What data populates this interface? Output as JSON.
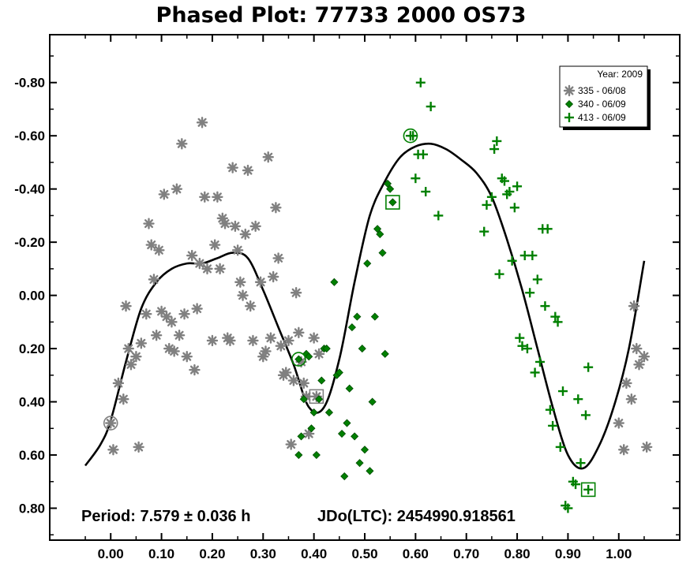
{
  "chart_data": {
    "type": "scatter",
    "title": "Phased Plot: 77733 2000 OS73",
    "xlabel": "",
    "ylabel": "",
    "xlim": [
      -0.12,
      1.12
    ],
    "ylim": [
      0.92,
      -0.98
    ],
    "y_inverted": true,
    "grid": false,
    "x_ticks": [
      0.0,
      0.1,
      0.2,
      0.3,
      0.4,
      0.5,
      0.6,
      0.7,
      0.8,
      0.9,
      1.0
    ],
    "x_tick_labels": [
      "0.00",
      "0.10",
      "0.20",
      "0.30",
      "0.40",
      "0.50",
      "0.60",
      "0.70",
      "0.80",
      "0.90",
      "1.00"
    ],
    "y_ticks": [
      -0.8,
      -0.6,
      -0.4,
      -0.2,
      0.0,
      0.2,
      0.4,
      0.6,
      0.8
    ],
    "y_tick_labels": [
      "-0.80",
      "-0.60",
      "-0.40",
      "-0.20",
      "0.00",
      "0.20",
      "0.40",
      "0.60",
      "0.80"
    ],
    "legend": {
      "placement": "top-right",
      "title": "Year: 2009",
      "entries": [
        {
          "label": "335 - 06/08",
          "marker": "asterisk",
          "color": "#808080"
        },
        {
          "label": "340 - 06/09",
          "marker": "diamond",
          "color": "#008000"
        },
        {
          "label": "413 - 06/09",
          "marker": "plus",
          "color": "#008000"
        }
      ]
    },
    "annotations": {
      "period": "Period: 7.579 ± 0.036 h",
      "epoch": "JDo(LTC): 2454990.918561"
    },
    "series": [
      {
        "name": "335 - 06/08",
        "marker": "asterisk",
        "color": "#808080",
        "points": [
          [
            0.005,
            0.58
          ],
          [
            0.015,
            0.33
          ],
          [
            0.025,
            0.39
          ],
          [
            0.03,
            0.04
          ],
          [
            0.035,
            0.2
          ],
          [
            0.04,
            0.26
          ],
          [
            0.05,
            0.23
          ],
          [
            0.055,
            0.57
          ],
          [
            0.06,
            0.18
          ],
          [
            0.07,
            0.07
          ],
          [
            0.075,
            -0.27
          ],
          [
            0.08,
            -0.19
          ],
          [
            0.085,
            -0.06
          ],
          [
            0.09,
            0.15
          ],
          [
            0.095,
            -0.17
          ],
          [
            0.1,
            0.06
          ],
          [
            0.105,
            -0.38
          ],
          [
            0.11,
            0.08
          ],
          [
            0.115,
            0.2
          ],
          [
            0.12,
            0.1
          ],
          [
            0.125,
            0.21
          ],
          [
            0.13,
            -0.4
          ],
          [
            0.135,
            0.15
          ],
          [
            0.14,
            -0.57
          ],
          [
            0.145,
            0.07
          ],
          [
            0.15,
            0.23
          ],
          [
            0.16,
            -0.15
          ],
          [
            0.165,
            0.28
          ],
          [
            0.17,
            0.05
          ],
          [
            0.175,
            -0.12
          ],
          [
            0.18,
            -0.65
          ],
          [
            0.185,
            -0.37
          ],
          [
            0.19,
            -0.1
          ],
          [
            0.2,
            0.17
          ],
          [
            0.205,
            -0.19
          ],
          [
            0.21,
            -0.37
          ],
          [
            0.215,
            -0.1
          ],
          [
            0.22,
            -0.29
          ],
          [
            0.225,
            -0.27
          ],
          [
            0.23,
            0.16
          ],
          [
            0.235,
            0.17
          ],
          [
            0.24,
            -0.48
          ],
          [
            0.245,
            -0.26
          ],
          [
            0.25,
            -0.17
          ],
          [
            0.255,
            -0.05
          ],
          [
            0.26,
            0.0
          ],
          [
            0.265,
            -0.23
          ],
          [
            0.27,
            -0.47
          ],
          [
            0.275,
            0.04
          ],
          [
            0.28,
            0.17
          ],
          [
            0.285,
            -0.26
          ],
          [
            0.295,
            -0.05
          ],
          [
            0.3,
            0.23
          ],
          [
            0.305,
            0.21
          ],
          [
            0.31,
            -0.52
          ],
          [
            0.315,
            0.16
          ],
          [
            0.32,
            -0.07
          ],
          [
            0.325,
            -0.33
          ],
          [
            0.33,
            -0.14
          ],
          [
            0.335,
            0.19
          ],
          [
            0.34,
            0.3
          ],
          [
            0.345,
            0.29
          ],
          [
            0.35,
            0.17
          ],
          [
            0.355,
            0.56
          ],
          [
            0.36,
            0.32
          ],
          [
            0.365,
            -0.01
          ],
          [
            0.37,
            0.14
          ],
          [
            0.375,
            0.25
          ],
          [
            0.38,
            0.33
          ],
          [
            0.385,
            0.38
          ],
          [
            0.39,
            0.52
          ],
          [
            0.4,
            0.16
          ],
          [
            0.41,
            0.22
          ],
          [
            1.0,
            0.48
          ],
          [
            1.01,
            0.58
          ],
          [
            1.015,
            0.33
          ],
          [
            1.025,
            0.39
          ],
          [
            1.03,
            0.04
          ],
          [
            1.035,
            0.2
          ],
          [
            1.04,
            0.26
          ],
          [
            1.05,
            0.23
          ],
          [
            1.055,
            0.57
          ]
        ],
        "circled": [
          0.0,
          0.48
        ],
        "boxed": [
          0.405,
          0.38
        ]
      },
      {
        "name": "340 - 06/09",
        "marker": "diamond",
        "color": "#008000",
        "points": [
          [
            0.37,
            0.6
          ],
          [
            0.375,
            0.53
          ],
          [
            0.38,
            0.39
          ],
          [
            0.385,
            0.22
          ],
          [
            0.39,
            0.23
          ],
          [
            0.395,
            0.5
          ],
          [
            0.4,
            0.44
          ],
          [
            0.405,
            0.6
          ],
          [
            0.41,
            0.39
          ],
          [
            0.415,
            0.32
          ],
          [
            0.42,
            0.2
          ],
          [
            0.425,
            0.2
          ],
          [
            0.43,
            0.44
          ],
          [
            0.44,
            -0.05
          ],
          [
            0.445,
            0.3
          ],
          [
            0.45,
            0.29
          ],
          [
            0.455,
            0.52
          ],
          [
            0.46,
            0.68
          ],
          [
            0.465,
            0.48
          ],
          [
            0.47,
            0.35
          ],
          [
            0.475,
            0.12
          ],
          [
            0.48,
            0.53
          ],
          [
            0.485,
            0.08
          ],
          [
            0.49,
            0.63
          ],
          [
            0.495,
            0.2
          ],
          [
            0.5,
            0.58
          ],
          [
            0.505,
            -0.12
          ],
          [
            0.51,
            0.66
          ],
          [
            0.515,
            0.4
          ],
          [
            0.52,
            0.08
          ],
          [
            0.525,
            -0.25
          ],
          [
            0.53,
            -0.23
          ],
          [
            0.535,
            -0.16
          ],
          [
            0.54,
            0.22
          ],
          [
            0.545,
            -0.42
          ],
          [
            0.55,
            -0.4
          ],
          [
            0.555,
            -0.35
          ]
        ],
        "circled": [
          0.37,
          0.24
        ],
        "boxed": [
          0.555,
          -0.35
        ]
      },
      {
        "name": "413 - 06/09",
        "marker": "plus",
        "color": "#008000",
        "points": [
          [
            0.595,
            -0.6
          ],
          [
            0.6,
            -0.44
          ],
          [
            0.605,
            -0.53
          ],
          [
            0.61,
            -0.8
          ],
          [
            0.615,
            -0.53
          ],
          [
            0.62,
            -0.39
          ],
          [
            0.63,
            -0.71
          ],
          [
            0.645,
            -0.3
          ],
          [
            0.735,
            -0.24
          ],
          [
            0.74,
            -0.34
          ],
          [
            0.75,
            -0.37
          ],
          [
            0.755,
            -0.55
          ],
          [
            0.76,
            -0.58
          ],
          [
            0.765,
            -0.08
          ],
          [
            0.77,
            -0.44
          ],
          [
            0.775,
            -0.43
          ],
          [
            0.78,
            -0.38
          ],
          [
            0.785,
            -0.39
          ],
          [
            0.79,
            -0.13
          ],
          [
            0.795,
            -0.33
          ],
          [
            0.8,
            -0.41
          ],
          [
            0.805,
            0.16
          ],
          [
            0.81,
            0.19
          ],
          [
            0.815,
            -0.15
          ],
          [
            0.82,
            0.2
          ],
          [
            0.825,
            -0.01
          ],
          [
            0.83,
            -0.15
          ],
          [
            0.835,
            0.29
          ],
          [
            0.84,
            -0.06
          ],
          [
            0.845,
            0.25
          ],
          [
            0.85,
            -0.25
          ],
          [
            0.855,
            0.04
          ],
          [
            0.86,
            -0.25
          ],
          [
            0.865,
            0.43
          ],
          [
            0.87,
            0.49
          ],
          [
            0.875,
            0.08
          ],
          [
            0.88,
            0.1
          ],
          [
            0.885,
            0.57
          ],
          [
            0.89,
            0.36
          ],
          [
            0.895,
            0.79
          ],
          [
            0.9,
            0.8
          ],
          [
            0.91,
            0.7
          ],
          [
            0.915,
            0.71
          ],
          [
            0.92,
            0.39
          ],
          [
            0.925,
            0.63
          ],
          [
            0.935,
            0.45
          ],
          [
            0.94,
            0.27
          ]
        ],
        "circled": [
          0.59,
          -0.6
        ],
        "boxed": [
          0.94,
          0.73
        ]
      }
    ],
    "fit_curve": {
      "name": "Fourier fit",
      "color": "#000000",
      "x": [
        -0.05,
        -0.02,
        0.0,
        0.03,
        0.06,
        0.09,
        0.12,
        0.15,
        0.18,
        0.21,
        0.24,
        0.27,
        0.3,
        0.33,
        0.36,
        0.39,
        0.42,
        0.45,
        0.48,
        0.51,
        0.54,
        0.57,
        0.6,
        0.63,
        0.66,
        0.69,
        0.72,
        0.75,
        0.78,
        0.81,
        0.84,
        0.87,
        0.9,
        0.93,
        0.96,
        0.99,
        1.02,
        1.05
      ],
      "y": [
        0.64,
        0.56,
        0.47,
        0.25,
        0.05,
        -0.05,
        -0.1,
        -0.12,
        -0.12,
        -0.14,
        -0.16,
        -0.14,
        -0.02,
        0.12,
        0.26,
        0.42,
        0.42,
        0.24,
        -0.05,
        -0.3,
        -0.43,
        -0.52,
        -0.56,
        -0.57,
        -0.55,
        -0.51,
        -0.46,
        -0.37,
        -0.21,
        -0.02,
        0.2,
        0.42,
        0.6,
        0.65,
        0.57,
        0.42,
        0.2,
        -0.13
      ]
    }
  }
}
